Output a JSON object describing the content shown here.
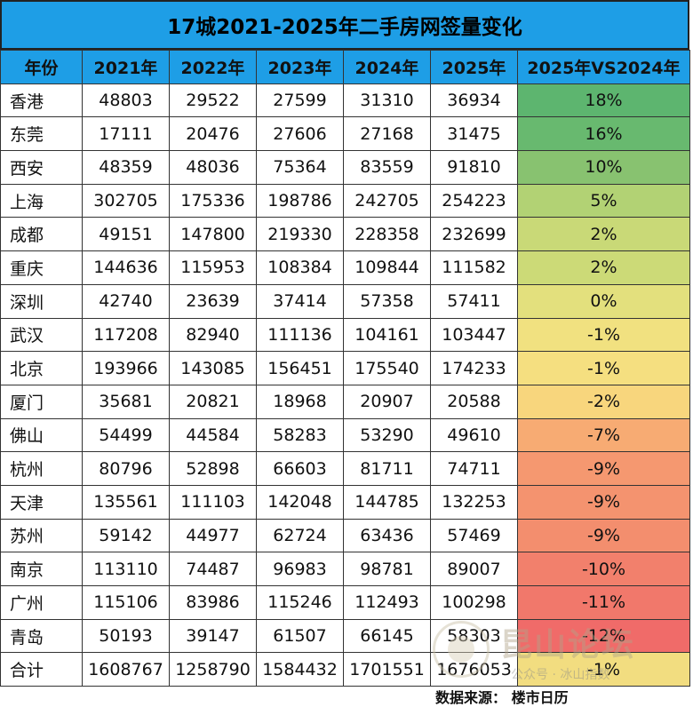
{
  "title": "17城2021-2025年二手房网签量变化",
  "headers": [
    "年份",
    "2021年",
    "2022年",
    "2023年",
    "2024年",
    "2025年",
    "2025年VS2024年"
  ],
  "rows": [
    {
      "city": "香港",
      "v2021": "48803",
      "v2022": "29522",
      "v2023": "27599",
      "v2024": "31310",
      "v2025": "36934",
      "change": "18%",
      "color": "#5db56f"
    },
    {
      "city": "东莞",
      "v2021": "17111",
      "v2022": "20476",
      "v2023": "27606",
      "v2024": "27168",
      "v2025": "31475",
      "change": "16%",
      "color": "#68b96f"
    },
    {
      "city": "西安",
      "v2021": "48359",
      "v2022": "48036",
      "v2023": "75364",
      "v2024": "83559",
      "v2025": "91810",
      "change": "10%",
      "color": "#88c270"
    },
    {
      "city": "上海",
      "v2021": "302705",
      "v2022": "175336",
      "v2023": "198786",
      "v2024": "242705",
      "v2025": "254223",
      "change": "5%",
      "color": "#b2d274"
    },
    {
      "city": "成都",
      "v2021": "49151",
      "v2022": "147800",
      "v2023": "219330",
      "v2024": "228358",
      "v2025": "232699",
      "change": "2%",
      "color": "#c9d977"
    },
    {
      "city": "重庆",
      "v2021": "144636",
      "v2022": "115953",
      "v2023": "108384",
      "v2024": "109844",
      "v2025": "111582",
      "change": "2%",
      "color": "#ccda77"
    },
    {
      "city": "深圳",
      "v2021": "42740",
      "v2022": "23639",
      "v2023": "37414",
      "v2024": "57358",
      "v2025": "57411",
      "change": "0%",
      "color": "#e3e07d"
    },
    {
      "city": "武汉",
      "v2021": "117208",
      "v2022": "82940",
      "v2023": "111136",
      "v2024": "104161",
      "v2025": "103447",
      "change": "-1%",
      "color": "#f1e180"
    },
    {
      "city": "北京",
      "v2021": "193966",
      "v2022": "143085",
      "v2023": "156451",
      "v2024": "175540",
      "v2025": "174233",
      "change": "-1%",
      "color": "#f5df80"
    },
    {
      "city": "厦门",
      "v2021": "35681",
      "v2022": "20821",
      "v2023": "18968",
      "v2024": "20907",
      "v2025": "20588",
      "change": "-2%",
      "color": "#f8d67d"
    },
    {
      "city": "佛山",
      "v2021": "54499",
      "v2022": "44584",
      "v2023": "58283",
      "v2024": "53290",
      "v2025": "49610",
      "change": "-7%",
      "color": "#f7ab73"
    },
    {
      "city": "杭州",
      "v2021": "80796",
      "v2022": "52898",
      "v2023": "66603",
      "v2024": "81711",
      "v2025": "74711",
      "change": "-9%",
      "color": "#f59870"
    },
    {
      "city": "天津",
      "v2021": "135561",
      "v2022": "111103",
      "v2023": "142048",
      "v2024": "144785",
      "v2025": "132253",
      "change": "-9%",
      "color": "#f4936f"
    },
    {
      "city": "苏州",
      "v2021": "59142",
      "v2022": "44977",
      "v2023": "62724",
      "v2024": "63436",
      "v2025": "57469",
      "change": "-9%",
      "color": "#f38e6e"
    },
    {
      "city": "南京",
      "v2021": "113110",
      "v2022": "74487",
      "v2023": "96983",
      "v2024": "98781",
      "v2025": "89007",
      "change": "-10%",
      "color": "#f2806c"
    },
    {
      "city": "广州",
      "v2021": "115106",
      "v2022": "83986",
      "v2023": "115246",
      "v2024": "112493",
      "v2025": "100298",
      "change": "-11%",
      "color": "#f1786b"
    },
    {
      "city": "青岛",
      "v2021": "50193",
      "v2022": "39147",
      "v2023": "61507",
      "v2024": "66145",
      "v2025": "58303",
      "change": "-12%",
      "color": "#f06b69"
    },
    {
      "city": "合计",
      "v2021": "1608767",
      "v2022": "1258790",
      "v2023": "1584432",
      "v2024": "1701551",
      "v2025": "1676053",
      "change": "-1%",
      "color": "#f2dd80"
    }
  ],
  "source": "数据来源：  楼市日历",
  "watermark": {
    "main": "昆山论坛",
    "sub": "公众号 · 冰山指数"
  }
}
